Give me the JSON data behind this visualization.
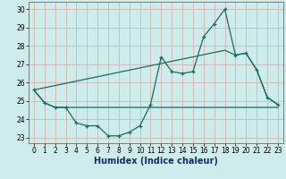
{
  "xlabel": "Humidex (Indice chaleur)",
  "ylabel": "",
  "bg_color": "#ceecea",
  "grid_color": "#d4a8a8",
  "line_color": "#1a6b60",
  "xlim": [
    -0.5,
    23.5
  ],
  "ylim": [
    22.7,
    30.4
  ],
  "xticks": [
    0,
    1,
    2,
    3,
    4,
    5,
    6,
    7,
    8,
    9,
    10,
    11,
    12,
    13,
    14,
    15,
    16,
    17,
    18,
    19,
    20,
    21,
    22,
    23
  ],
  "yticks": [
    23,
    24,
    25,
    26,
    27,
    28,
    29,
    30
  ],
  "series1_x": [
    0,
    1,
    2,
    3,
    4,
    5,
    6,
    7,
    8,
    9,
    10,
    11,
    12,
    13,
    14,
    15,
    16,
    17,
    18,
    19,
    20,
    21,
    22,
    23
  ],
  "series1_y": [
    25.6,
    24.9,
    24.65,
    24.65,
    23.8,
    23.65,
    23.65,
    23.1,
    23.1,
    23.3,
    23.65,
    24.8,
    27.4,
    26.6,
    26.5,
    26.6,
    28.5,
    29.2,
    30.0,
    27.5,
    27.6,
    26.7,
    25.2,
    24.8
  ],
  "series2_x": [
    0,
    1,
    2,
    3,
    4,
    5,
    6,
    7,
    8,
    9,
    10,
    11,
    12,
    13,
    14,
    15,
    16,
    17,
    18,
    19,
    20,
    21,
    22,
    23
  ],
  "series2_y": [
    25.6,
    24.9,
    24.65,
    24.65,
    24.65,
    24.65,
    24.65,
    24.65,
    24.65,
    24.65,
    24.65,
    24.65,
    24.65,
    24.65,
    24.65,
    24.65,
    24.65,
    24.65,
    24.65,
    24.65,
    24.65,
    24.65,
    24.65,
    24.65
  ],
  "series3_x": [
    0,
    1,
    2,
    3,
    4,
    5,
    6,
    7,
    8,
    9,
    10,
    11,
    12,
    13,
    14,
    15,
    16,
    17,
    18,
    19,
    20,
    21,
    22,
    23
  ],
  "series3_y": [
    25.6,
    25.72,
    25.84,
    25.96,
    26.08,
    26.2,
    26.32,
    26.44,
    26.56,
    26.68,
    26.8,
    26.92,
    27.04,
    27.16,
    27.28,
    27.4,
    27.52,
    27.64,
    27.76,
    27.5,
    27.6,
    26.7,
    25.2,
    24.8
  ]
}
